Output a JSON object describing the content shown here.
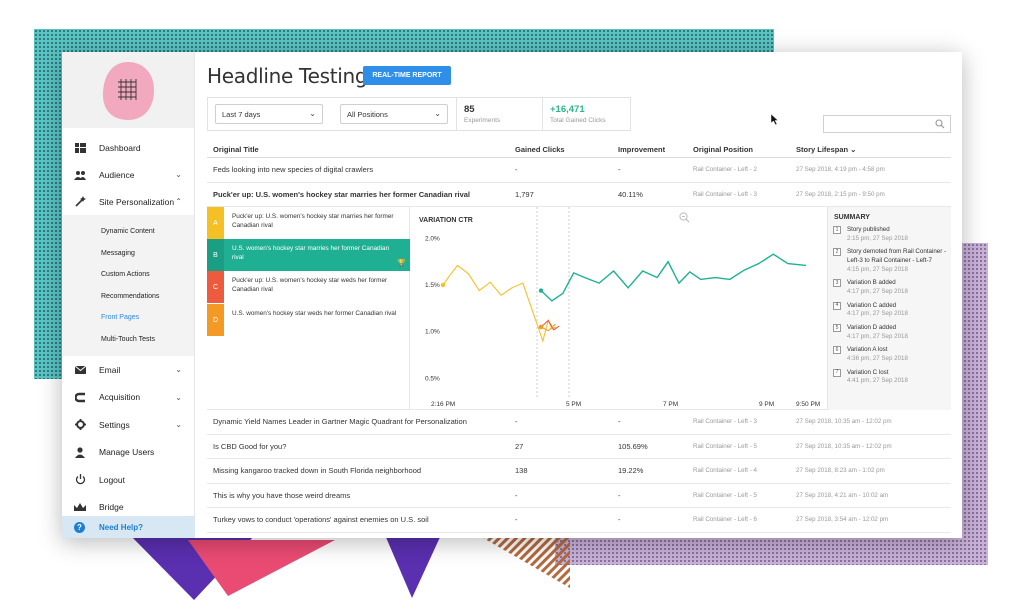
{
  "sidebar": {
    "items": [
      {
        "label": "Dashboard",
        "icon": "dashboard-icon"
      },
      {
        "label": "Audience",
        "icon": "people-icon"
      },
      {
        "label": "Site Personalization",
        "icon": "magic-wand-icon"
      }
    ],
    "sub_items": [
      "Dynamic Content",
      "Messaging",
      "Custom Actions",
      "Recommendations",
      "Front Pages",
      "Multi-Touch Tests"
    ],
    "active_sub": "Front Pages",
    "lower_items": [
      {
        "label": "Email",
        "icon": "envelope-icon"
      },
      {
        "label": "Acquisition",
        "icon": "magnet-icon"
      },
      {
        "label": "Settings",
        "icon": "gear-icon"
      },
      {
        "label": "Manage Users",
        "icon": "user-icon"
      },
      {
        "label": "Logout",
        "icon": "power-icon"
      },
      {
        "label": "Bridge",
        "icon": "crown-icon"
      }
    ],
    "help_label": "Need Help?"
  },
  "header": {
    "title": "Headline Testing",
    "realtime_button": "REAL-TIME REPORT"
  },
  "filters": {
    "date_range": "Last 7 days",
    "positions": "All Positions",
    "experiments_value": "85",
    "experiments_label": "Experiments",
    "clicks_value": "+16,471",
    "clicks_label": "Total Gained Clicks"
  },
  "table": {
    "headers": {
      "title": "Original Title",
      "clicks": "Gained Clicks",
      "improvement": "Improvement",
      "position": "Original Position",
      "lifespan": "Story Lifespan"
    },
    "rows_top": [
      {
        "title": "Feds looking into new species of digital crawlers",
        "clicks": "-",
        "improvement": "-",
        "position": "Rail Container - Left - 2",
        "lifespan": "27 Sep 2018, 4:19 pm - 4:58 pm"
      },
      {
        "title": "Puck'er up: U.S. women's hockey star marries her former Canadian rival",
        "clicks": "1,797",
        "improvement": "40.11%",
        "position": "Rail Container - Left - 3",
        "lifespan": "27 Sep 2018, 2:15 pm - 9:50 pm"
      }
    ],
    "rows_bottom": [
      {
        "title": "Dynamic Yield Names Leader in Gartner Magic Quadrant for Personalization",
        "clicks": "-",
        "improvement": "-",
        "position": "Rail Container - Left - 3",
        "lifespan": "27 Sep 2018, 10:35 am - 12:02 pm"
      },
      {
        "title": "Is CBD Good for you?",
        "clicks": "27",
        "improvement": "105.69%",
        "position": "Rail Container - Left - 5",
        "lifespan": "27 Sep 2018, 10:35 am - 12:02 pm"
      },
      {
        "title": "Missing kangaroo tracked down in South Florida neighborhood",
        "clicks": "138",
        "improvement": "19.22%",
        "position": "Rail Container - Left - 4",
        "lifespan": "27 Sep 2018, 8:23 am - 1:02 pm"
      },
      {
        "title": "This is why you have those weird dreams",
        "clicks": "-",
        "improvement": "-",
        "position": "Rail Container - Left - 5",
        "lifespan": "27 Sep 2018, 4:21 am - 10:02 am"
      },
      {
        "title": "Turkey vows to conduct 'operations' against enemies on U.S. soil",
        "clicks": "-",
        "improvement": "-",
        "position": "Rail Container - Left - 6",
        "lifespan": "27 Sep 2018, 3:54 am - 12:02 pm"
      }
    ]
  },
  "variations": [
    {
      "letter": "A",
      "text": "Puck'er up: U.S. women's hockey star marries her former Canadian rival",
      "color": "#f5c025",
      "selected": false
    },
    {
      "letter": "B",
      "text": "U.S. women's hockey star marries her former Canadian rival",
      "color": "#1a9f84",
      "selected": true
    },
    {
      "letter": "C",
      "text": "Puck'er up: U.S. women's hockey star weds her former Canadian rival",
      "color": "#ec5b3d",
      "selected": false
    },
    {
      "letter": "D",
      "text": "U.S. women's hockey star weds her former Canadian rival",
      "color": "#f39a26",
      "selected": false
    }
  ],
  "summary": {
    "title": "SUMMARY",
    "events": [
      {
        "n": "1",
        "text": "Story published",
        "time": "2:15 pm, 27 Sep 2018"
      },
      {
        "n": "2",
        "text": "Story demoted from Rail Container - Left-3 to Rail Container - Left-7",
        "time": "4:15 pm, 27 Sep 2018"
      },
      {
        "n": "3",
        "text": "Variation B added",
        "time": "4:17 pm, 27 Sep 2018"
      },
      {
        "n": "4",
        "text": "Variation C added",
        "time": "4:17 pm, 27 Sep 2018"
      },
      {
        "n": "5",
        "text": "Variation D added",
        "time": "4:17 pm, 27 Sep 2018"
      },
      {
        "n": "6",
        "text": "Variation A lost",
        "time": "4:36 pm, 27 Sep 2018"
      },
      {
        "n": "7",
        "text": "Variation C lost",
        "time": "4:41 pm, 27 Sep 2018"
      }
    ]
  },
  "chart_data": {
    "type": "line",
    "title": "VARIATION CTR",
    "x_ticks": [
      "2:16 PM",
      "5 PM",
      "7 PM",
      "9 PM",
      "9:50 PM"
    ],
    "y_ticks": [
      "2.0%",
      "1.5%",
      "1.0%",
      "0.5%"
    ],
    "ylim": [
      0.3,
      2.1
    ],
    "series": [
      {
        "name": "A",
        "color": "#f5c025",
        "x": [
          0,
          0.018,
          0.04,
          0.07,
          0.1,
          0.13,
          0.16,
          0.19,
          0.22,
          0.245,
          0.26,
          0.275,
          0.29,
          0.3,
          0.31
        ],
        "y": [
          1.5,
          1.6,
          1.71,
          1.62,
          1.44,
          1.53,
          1.39,
          1.47,
          1.52,
          1.24,
          1.07,
          0.9,
          1.12,
          1.03,
          1.05
        ]
      },
      {
        "name": "B",
        "color": "#1fb093",
        "x": [
          0.27,
          0.3,
          0.33,
          0.36,
          0.39,
          0.43,
          0.47,
          0.51,
          0.55,
          0.59,
          0.62,
          0.65,
          0.68,
          0.71,
          0.75,
          0.79,
          0.83,
          0.87,
          0.91,
          0.95,
          1.0
        ],
        "y": [
          1.44,
          1.33,
          1.41,
          1.63,
          1.58,
          1.52,
          1.65,
          1.47,
          1.65,
          1.58,
          1.75,
          1.52,
          1.64,
          1.56,
          1.58,
          1.56,
          1.66,
          1.73,
          1.83,
          1.73,
          1.71
        ]
      },
      {
        "name": "C",
        "color": "#ec5b3d",
        "x": [
          0.27,
          0.29,
          0.305,
          0.32
        ],
        "y": [
          1.05,
          1.12,
          1.02,
          1.06
        ]
      },
      {
        "name": "D",
        "color": "#f39a26",
        "x": [
          0.27,
          0.29,
          0.31
        ],
        "y": [
          1.05,
          1.01,
          1.08
        ]
      }
    ]
  }
}
